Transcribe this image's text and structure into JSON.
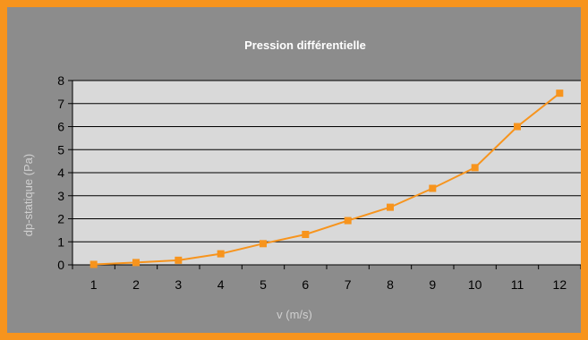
{
  "chart_data": {
    "type": "line",
    "title": "Pression différentielle",
    "xlabel": "v (m/s)",
    "ylabel": "dp-statique (Pa)",
    "categories": [
      "1",
      "2",
      "3",
      "4",
      "5",
      "6",
      "7",
      "8",
      "9",
      "10",
      "11",
      "12"
    ],
    "series": [
      {
        "values": [
          0.02,
          0.1,
          0.2,
          0.48,
          0.92,
          1.32,
          1.92,
          2.5,
          3.32,
          4.22,
          6.0,
          7.45
        ]
      }
    ],
    "ylim": [
      0,
      8
    ],
    "yticks": [
      0,
      1,
      2,
      3,
      4,
      5,
      6,
      7,
      8
    ],
    "grid": true,
    "legend": "none",
    "colors": {
      "outer_border": "#f7941d",
      "chart_area": "#8c8c8c",
      "plot_area": "#d9d9d9",
      "series_line": "#f7941d",
      "marker": "#f7941d",
      "gridlines": "#000000",
      "title_text": "#ffffff",
      "axis_label_text": "#d0d0d0",
      "tick_text": "#000000"
    }
  }
}
